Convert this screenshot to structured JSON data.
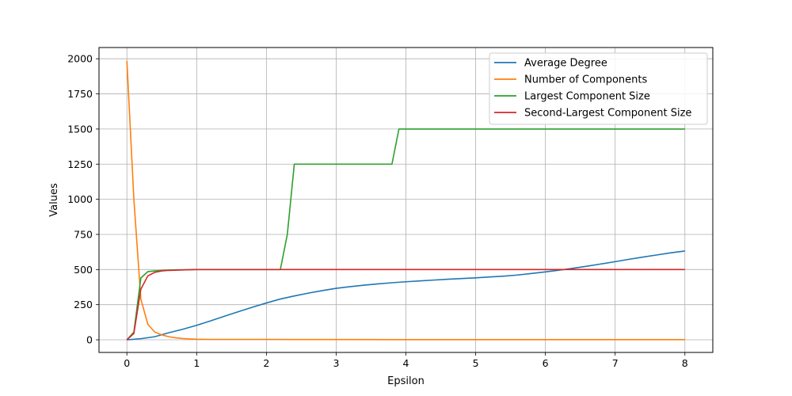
{
  "chart_data": {
    "type": "line",
    "title": "",
    "xlabel": "Epsilon",
    "ylabel": "Values",
    "xlim": [
      -0.4,
      8.4
    ],
    "ylim": [
      -90,
      2080
    ],
    "xticks": [
      0,
      1,
      2,
      3,
      4,
      5,
      6,
      7,
      8
    ],
    "yticks": [
      0,
      250,
      500,
      750,
      1000,
      1250,
      1500,
      1750,
      2000
    ],
    "grid": true,
    "legend_position": "top-right",
    "series": [
      {
        "name": "Average Degree",
        "color": "#1f77b4",
        "points": [
          [
            0,
            0
          ],
          [
            0.2,
            8
          ],
          [
            0.4,
            22
          ],
          [
            0.6,
            50
          ],
          [
            0.8,
            75
          ],
          [
            1.0,
            103
          ],
          [
            1.2,
            135
          ],
          [
            1.4,
            168
          ],
          [
            1.6,
            200
          ],
          [
            1.8,
            232
          ],
          [
            2.0,
            262
          ],
          [
            2.2,
            290
          ],
          [
            2.4,
            312
          ],
          [
            2.6,
            332
          ],
          [
            2.8,
            350
          ],
          [
            3.0,
            366
          ],
          [
            3.2,
            378
          ],
          [
            3.4,
            389
          ],
          [
            3.6,
            398
          ],
          [
            3.8,
            406
          ],
          [
            4.0,
            413
          ],
          [
            4.2,
            419
          ],
          [
            4.4,
            425
          ],
          [
            4.6,
            431
          ],
          [
            4.8,
            436
          ],
          [
            5.0,
            441
          ],
          [
            5.2,
            447
          ],
          [
            5.4,
            453
          ],
          [
            5.6,
            461
          ],
          [
            5.8,
            472
          ],
          [
            6.0,
            483
          ],
          [
            6.2,
            496
          ],
          [
            6.4,
            509
          ],
          [
            6.6,
            524
          ],
          [
            6.8,
            540
          ],
          [
            7.0,
            556
          ],
          [
            7.2,
            573
          ],
          [
            7.4,
            589
          ],
          [
            7.6,
            604
          ],
          [
            7.8,
            619
          ],
          [
            8.0,
            632
          ]
        ]
      },
      {
        "name": "Number of Components",
        "color": "#ff7f0e",
        "points": [
          [
            0,
            1985
          ],
          [
            0.1,
            1000
          ],
          [
            0.2,
            290
          ],
          [
            0.3,
            110
          ],
          [
            0.4,
            55
          ],
          [
            0.5,
            35
          ],
          [
            0.6,
            22
          ],
          [
            0.7,
            14
          ],
          [
            0.8,
            9
          ],
          [
            0.9,
            6
          ],
          [
            1.0,
            4
          ],
          [
            1.2,
            3
          ],
          [
            1.5,
            3
          ],
          [
            2.0,
            3
          ],
          [
            2.4,
            2
          ],
          [
            3.0,
            2
          ],
          [
            4.0,
            1
          ],
          [
            5.0,
            1
          ],
          [
            6.0,
            1
          ],
          [
            7.0,
            1
          ],
          [
            8.0,
            1
          ]
        ]
      },
      {
        "name": "Largest Component Size",
        "color": "#2ca02c",
        "points": [
          [
            0,
            0
          ],
          [
            0.1,
            55
          ],
          [
            0.2,
            440
          ],
          [
            0.3,
            485
          ],
          [
            0.4,
            490
          ],
          [
            0.6,
            496
          ],
          [
            0.8,
            498
          ],
          [
            1.0,
            500
          ],
          [
            2.2,
            500
          ],
          [
            2.3,
            750
          ],
          [
            2.4,
            1250
          ],
          [
            3.8,
            1250
          ],
          [
            3.9,
            1500
          ],
          [
            8.0,
            1500
          ]
        ]
      },
      {
        "name": "Second-Largest Component Size",
        "color": "#d62728",
        "points": [
          [
            0,
            0
          ],
          [
            0.1,
            45
          ],
          [
            0.2,
            360
          ],
          [
            0.3,
            455
          ],
          [
            0.4,
            480
          ],
          [
            0.5,
            490
          ],
          [
            0.6,
            494
          ],
          [
            0.8,
            497
          ],
          [
            1.0,
            500
          ],
          [
            8.0,
            500
          ]
        ]
      }
    ]
  }
}
